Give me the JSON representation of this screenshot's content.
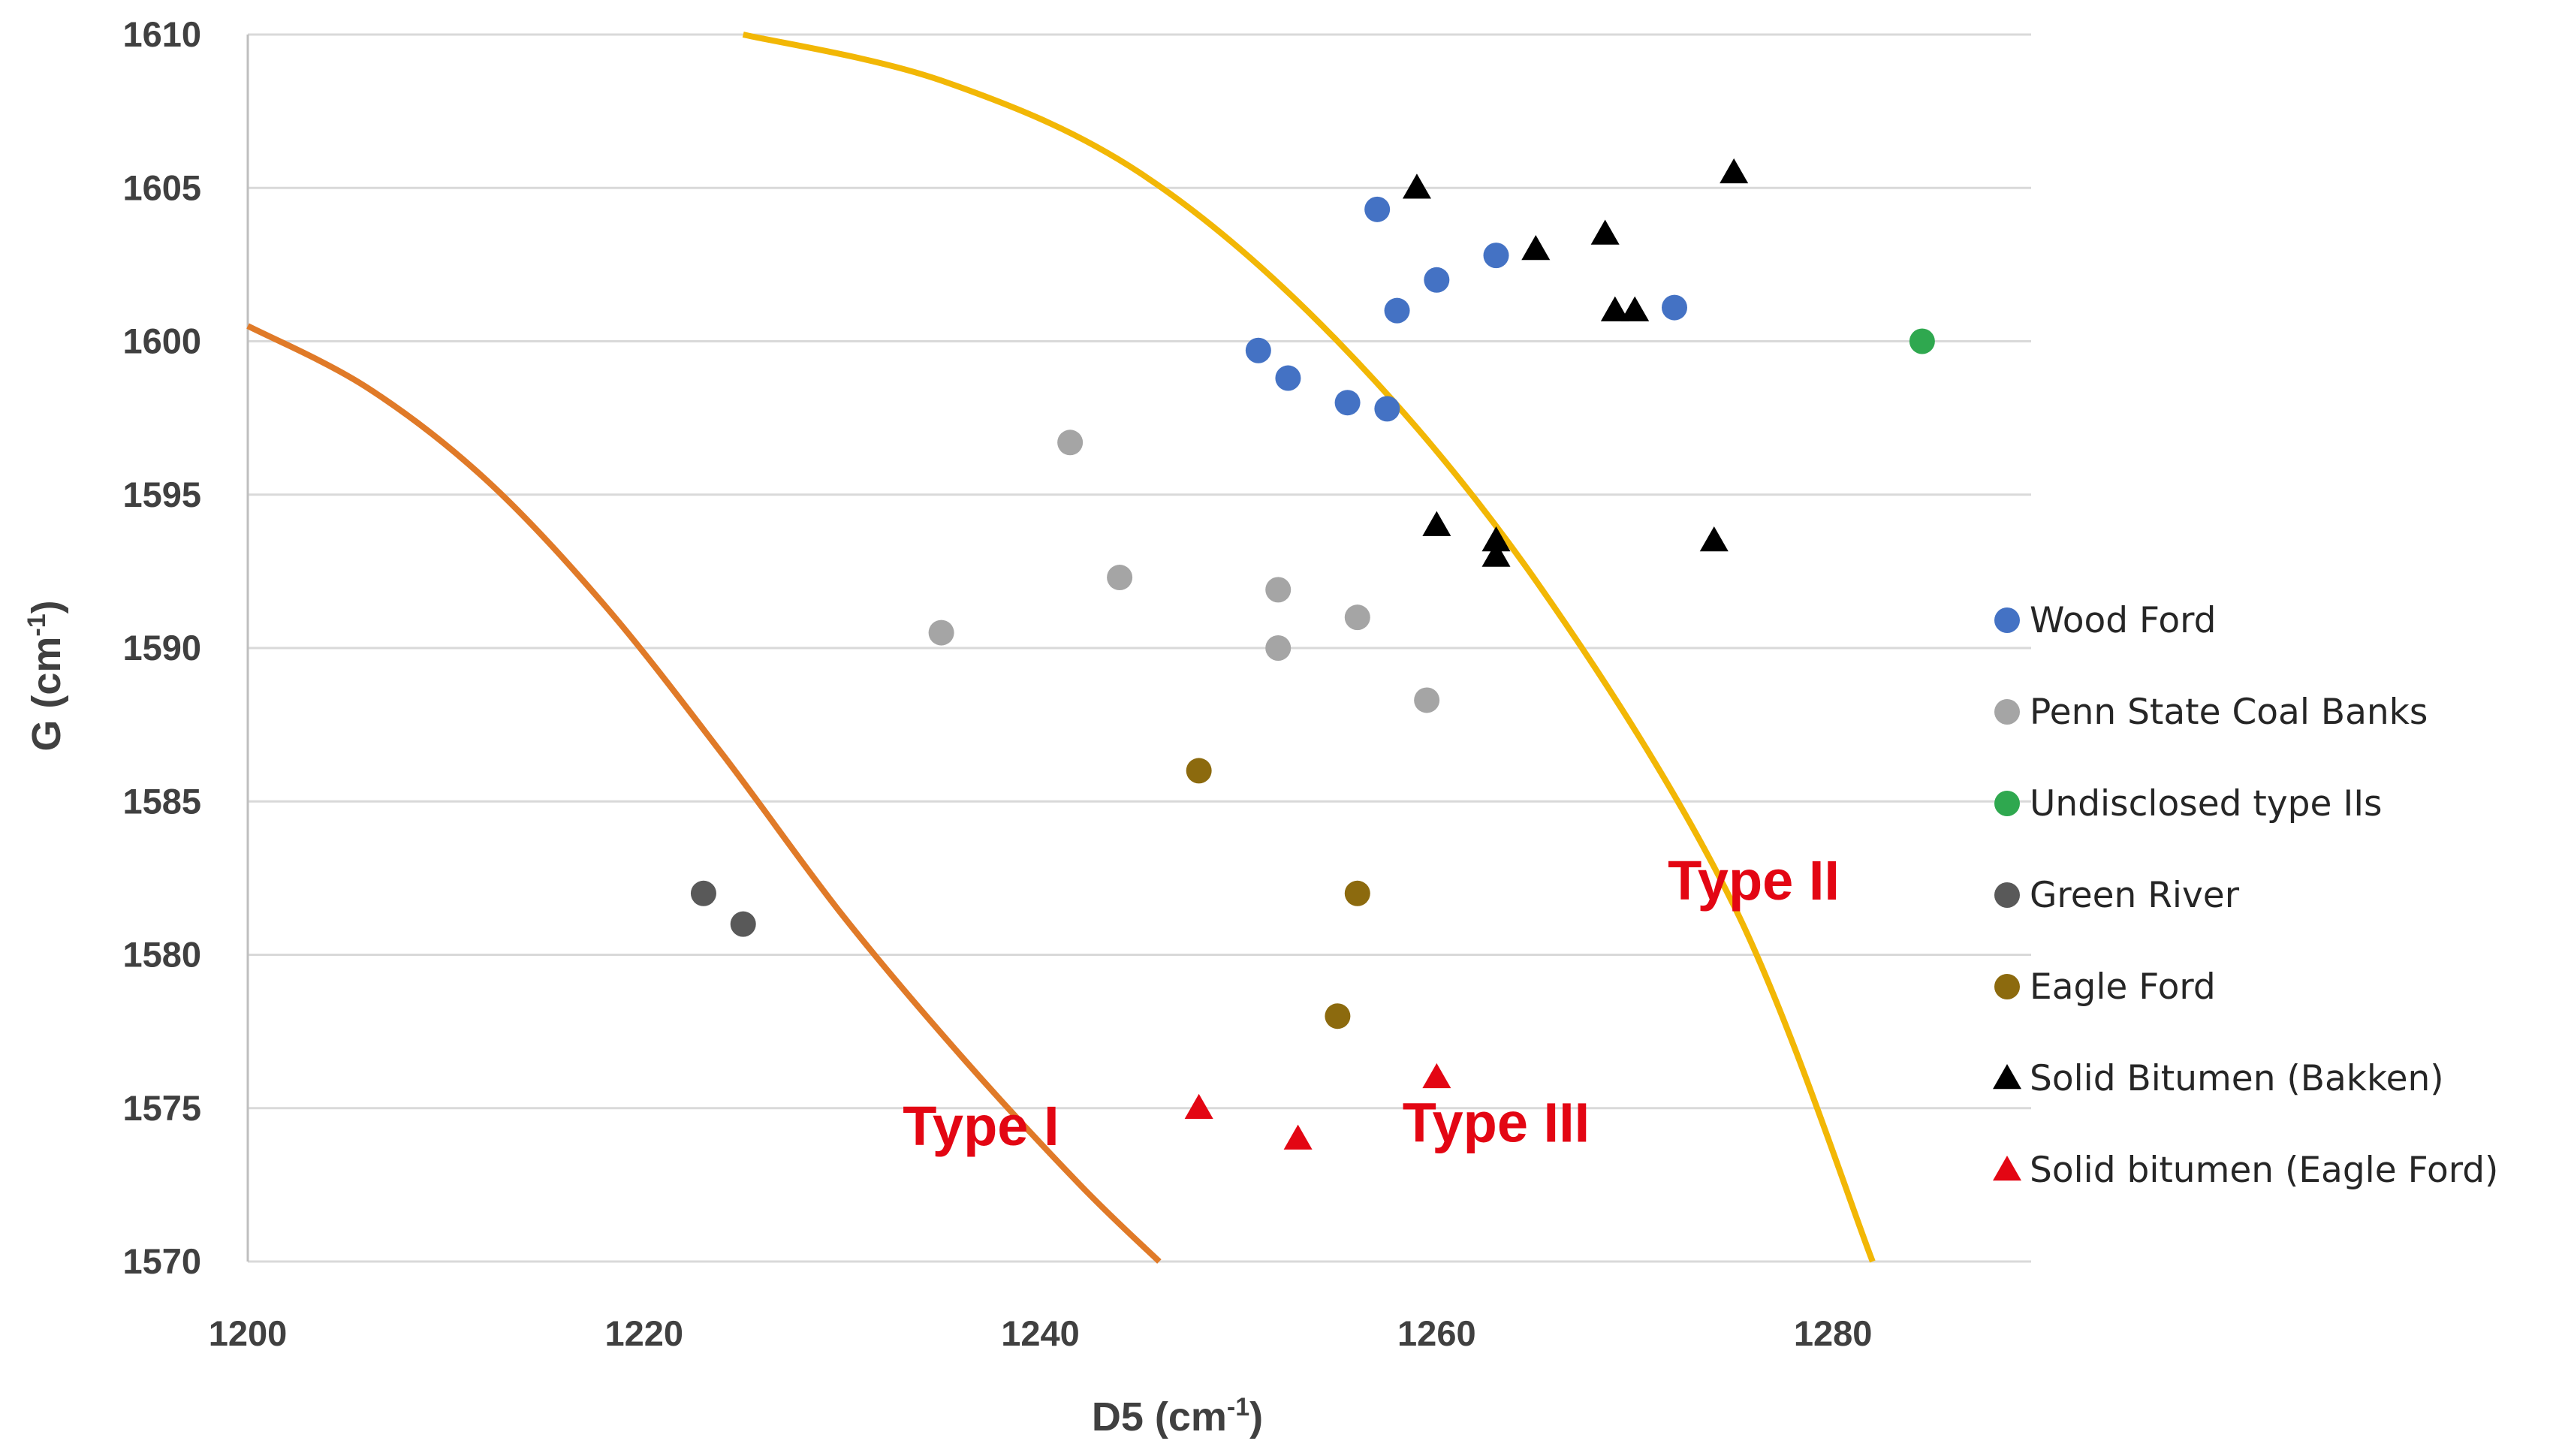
{
  "chart_data": {
    "type": "scatter",
    "title": "",
    "xlabel": "D5 (cm",
    "xlabel_sup": "-1",
    "xlabel_end": ")",
    "ylabel": "G (cm",
    "ylabel_sup": "-1",
    "ylabel_end": ")",
    "xlim": [
      1200,
      1290
    ],
    "ylim": [
      1570,
      1610
    ],
    "x_ticks": [
      1200,
      1220,
      1240,
      1260,
      1280
    ],
    "y_ticks": [
      1570,
      1575,
      1580,
      1585,
      1590,
      1595,
      1600,
      1605,
      1610
    ],
    "grid": true,
    "legend_position": "right",
    "series": [
      {
        "name": "Wood Ford",
        "marker": "circle",
        "color": "#4472c4",
        "points": [
          [
            1251,
            1599.7
          ],
          [
            1252.5,
            1598.8
          ],
          [
            1255.5,
            1598
          ],
          [
            1257.5,
            1597.8
          ],
          [
            1257,
            1604.3
          ],
          [
            1258,
            1601
          ],
          [
            1260,
            1602
          ],
          [
            1263,
            1602.8
          ],
          [
            1272,
            1601.1
          ]
        ]
      },
      {
        "name": "Penn State Coal Banks",
        "marker": "circle",
        "color": "#a5a5a5",
        "points": [
          [
            1235,
            1590.5
          ],
          [
            1241.5,
            1596.7
          ],
          [
            1244,
            1592.3
          ],
          [
            1252,
            1591.9
          ],
          [
            1252,
            1590
          ],
          [
            1256,
            1591
          ],
          [
            1259.5,
            1588.3
          ]
        ]
      },
      {
        "name": "Undisclosed type IIs",
        "marker": "circle",
        "color": "#2fa84f",
        "points": [
          [
            1284.5,
            1600
          ]
        ]
      },
      {
        "name": "Green River",
        "marker": "circle",
        "color": "#595959",
        "points": [
          [
            1223,
            1582
          ],
          [
            1225,
            1581
          ]
        ]
      },
      {
        "name": "Eagle Ford",
        "marker": "circle",
        "color": "#8c6a0e",
        "points": [
          [
            1248,
            1586
          ],
          [
            1256,
            1582
          ],
          [
            1255,
            1578
          ]
        ]
      },
      {
        "name": "Solid Bitumen (Bakken)",
        "marker": "triangle",
        "color": "#000000",
        "points": [
          [
            1259,
            1605
          ],
          [
            1265,
            1603
          ],
          [
            1268.5,
            1603.5
          ],
          [
            1269,
            1601
          ],
          [
            1270,
            1601
          ],
          [
            1275,
            1605.5
          ],
          [
            1260,
            1594
          ],
          [
            1263,
            1593.5
          ],
          [
            1263,
            1593
          ],
          [
            1274,
            1593.5
          ]
        ]
      },
      {
        "name": "Solid bitumen (Eagle Ford)",
        "marker": "triangle",
        "color": "#e30613",
        "points": [
          [
            1248,
            1575
          ],
          [
            1253,
            1574
          ],
          [
            1260,
            1576
          ]
        ]
      }
    ],
    "curves": [
      {
        "name": "Type I boundary",
        "color": "#e07a28",
        "points": [
          [
            1200,
            1600.5
          ],
          [
            1206,
            1598.5
          ],
          [
            1212,
            1595.5
          ],
          [
            1218,
            1591.4
          ],
          [
            1224,
            1586.5
          ],
          [
            1230,
            1581.3
          ],
          [
            1236,
            1576.7
          ],
          [
            1242,
            1572.5
          ],
          [
            1246,
            1570
          ]
        ]
      },
      {
        "name": "Type II/III boundary",
        "color": "#f2b705",
        "points": [
          [
            1225,
            1610
          ],
          [
            1235,
            1608.5
          ],
          [
            1245,
            1605.5
          ],
          [
            1255,
            1600
          ],
          [
            1265,
            1592.2
          ],
          [
            1275,
            1581.6
          ],
          [
            1282,
            1570
          ]
        ]
      }
    ],
    "annotations": [
      {
        "text": "Type I",
        "x": 1237,
        "y": 1573.8
      },
      {
        "text": "Type II",
        "x": 1276,
        "y": 1581.8
      },
      {
        "text": "Type III",
        "x": 1263,
        "y": 1573.9
      }
    ]
  }
}
